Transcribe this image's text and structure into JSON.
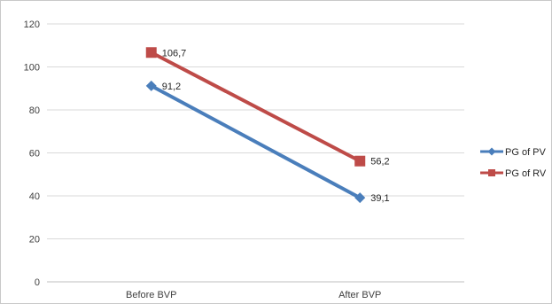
{
  "chart_data": {
    "type": "line",
    "categories": [
      "Before BVP",
      "After BVP"
    ],
    "series": [
      {
        "name": "PG of PV",
        "values": [
          91.2,
          39.1
        ],
        "labels": [
          "91,2",
          "39,1"
        ],
        "color": "#4a7ebb",
        "marker": "diamond"
      },
      {
        "name": "PG of RV",
        "values": [
          106.7,
          56.2
        ],
        "labels": [
          "106,7",
          "56,2"
        ],
        "color": "#be4b48",
        "marker": "square"
      }
    ],
    "ylim": [
      0,
      120
    ],
    "yticks": [
      "0",
      "20",
      "40",
      "60",
      "80",
      "100",
      "120"
    ],
    "grid": true,
    "grid_color": "#d9d9d9",
    "legend_position": "right"
  }
}
